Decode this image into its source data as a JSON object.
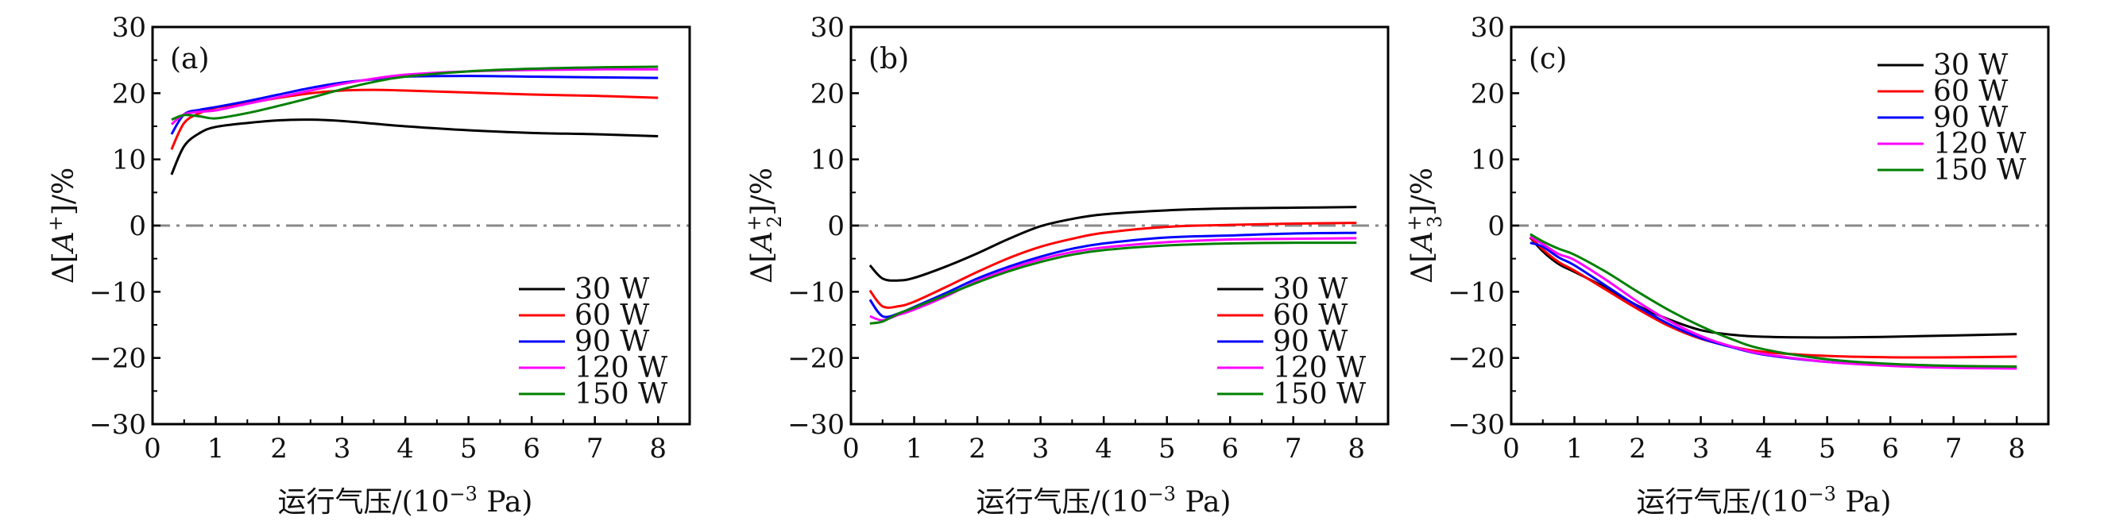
{
  "chart_data": [
    {
      "type": "line",
      "panel_label": "(a)",
      "ylabel": {
        "prefix": "Δ[",
        "ion": "A",
        "charge": "+",
        "sub": "",
        "suffix": "]/%"
      },
      "xlabel": {
        "text": "运行气压/(10",
        "exp": "−3",
        "unit": " Pa)"
      },
      "xlim": [
        0,
        8.5
      ],
      "ylim": [
        -30,
        30
      ],
      "xticks": [
        "0",
        "1",
        "2",
        "3",
        "4",
        "5",
        "6",
        "7",
        "8"
      ],
      "yticks": [
        "−30",
        "−20",
        "−10",
        "0",
        "10",
        "20",
        "30"
      ],
      "legend_position": "bottom-right",
      "reference_line": 0,
      "x": [
        0.3,
        0.5,
        0.75,
        1,
        1.5,
        2,
        2.5,
        3,
        3.5,
        4,
        5,
        6,
        7,
        8
      ],
      "series": [
        {
          "name": "30 W",
          "color": "#000000",
          "values": [
            7.7,
            12,
            14,
            14.9,
            15.5,
            15.9,
            16,
            15.8,
            15.4,
            15,
            14.4,
            14,
            13.8,
            13.5
          ]
        },
        {
          "name": "60 W",
          "color": "#ff0000",
          "values": [
            11.5,
            15.5,
            17,
            17.8,
            18.5,
            19.3,
            20,
            20.4,
            20.5,
            20.4,
            20.1,
            19.8,
            19.6,
            19.3
          ]
        },
        {
          "name": "90 W",
          "color": "#0000ff",
          "values": [
            13.8,
            16.8,
            17.5,
            17.9,
            18.8,
            19.8,
            20.8,
            21.6,
            22.1,
            22.5,
            22.6,
            22.5,
            22.4,
            22.3
          ]
        },
        {
          "name": "120 W",
          "color": "#ff00ff",
          "values": [
            15.3,
            16.8,
            17.2,
            17.4,
            18.4,
            19.4,
            20.4,
            21.4,
            22.2,
            22.8,
            23.3,
            23.5,
            23.6,
            23.6
          ]
        },
        {
          "name": "150 W",
          "color": "#008000",
          "values": [
            16,
            16.7,
            16.5,
            16.2,
            17,
            18.1,
            19.3,
            20.6,
            21.7,
            22.5,
            23.3,
            23.7,
            23.9,
            24
          ]
        }
      ]
    },
    {
      "type": "line",
      "panel_label": "(b)",
      "ylabel": {
        "prefix": "Δ[",
        "ion": "A",
        "charge": "+",
        "sub": "2",
        "suffix": "]/%"
      },
      "xlabel": {
        "text": "运行气压/(10",
        "exp": "−3",
        "unit": " Pa)"
      },
      "xlim": [
        0,
        8.5
      ],
      "ylim": [
        -30,
        30
      ],
      "xticks": [
        "0",
        "1",
        "2",
        "3",
        "4",
        "5",
        "6",
        "7",
        "8"
      ],
      "yticks": [
        "−30",
        "−20",
        "−10",
        "0",
        "10",
        "20",
        "30"
      ],
      "legend_position": "bottom-right",
      "reference_line": 0,
      "x": [
        0.3,
        0.5,
        0.75,
        1,
        1.5,
        2,
        2.5,
        3,
        3.5,
        4,
        5,
        6,
        7,
        8
      ],
      "series": [
        {
          "name": "30 W",
          "color": "#000000",
          "values": [
            -6,
            -8,
            -8.3,
            -7.9,
            -6.2,
            -4.2,
            -2,
            -0.1,
            1,
            1.7,
            2.3,
            2.6,
            2.7,
            2.8
          ]
        },
        {
          "name": "60 W",
          "color": "#ff0000",
          "values": [
            -9.8,
            -12.2,
            -12.2,
            -11.5,
            -9.3,
            -7,
            -4.9,
            -3.2,
            -2,
            -1.1,
            -0.2,
            0.1,
            0.3,
            0.4
          ]
        },
        {
          "name": "90 W",
          "color": "#0000ff",
          "values": [
            -11.2,
            -13.7,
            -13.3,
            -12.3,
            -10.2,
            -8,
            -6.2,
            -4.7,
            -3.5,
            -2.7,
            -1.8,
            -1.5,
            -1.2,
            -1.1
          ]
        },
        {
          "name": "120 W",
          "color": "#ff00ff",
          "values": [
            -13.7,
            -14.3,
            -13.5,
            -12.7,
            -10.7,
            -8.4,
            -6.6,
            -5.1,
            -4,
            -3.3,
            -2.5,
            -2.1,
            -2,
            -1.9
          ]
        },
        {
          "name": "150 W",
          "color": "#008000",
          "values": [
            -14.8,
            -14.5,
            -13.3,
            -12.4,
            -10.5,
            -8.6,
            -6.9,
            -5.5,
            -4.4,
            -3.7,
            -3,
            -2.7,
            -2.6,
            -2.6
          ]
        }
      ]
    },
    {
      "type": "line",
      "panel_label": "(c)",
      "ylabel": {
        "prefix": "Δ[",
        "ion": "A",
        "charge": "+",
        "sub": "3",
        "suffix": "]/%"
      },
      "xlabel": {
        "text": "运行气压/(10",
        "exp": "−3",
        "unit": " Pa)"
      },
      "xlim": [
        0,
        8.5
      ],
      "ylim": [
        -30,
        30
      ],
      "xticks": [
        "0",
        "1",
        "2",
        "3",
        "4",
        "5",
        "6",
        "7",
        "8"
      ],
      "yticks": [
        "−30",
        "−20",
        "−10",
        "0",
        "10",
        "20",
        "30"
      ],
      "legend_position": "top-right",
      "reference_line": 0,
      "x": [
        0.3,
        0.5,
        0.75,
        1,
        1.5,
        2,
        2.5,
        3,
        3.5,
        4,
        5,
        6,
        7,
        8
      ],
      "series": [
        {
          "name": "30 W",
          "color": "#000000",
          "values": [
            -1.8,
            -3.9,
            -5.8,
            -7,
            -9.4,
            -12.1,
            -14.2,
            -15.8,
            -16.5,
            -16.8,
            -16.9,
            -16.8,
            -16.6,
            -16.4
          ]
        },
        {
          "name": "60 W",
          "color": "#ff0000",
          "values": [
            -1.7,
            -3.6,
            -5.5,
            -6.8,
            -9.7,
            -12.6,
            -15.2,
            -17.1,
            -18.3,
            -19.1,
            -19.7,
            -19.9,
            -19.9,
            -19.8
          ]
        },
        {
          "name": "90 W",
          "color": "#0000ff",
          "values": [
            -2.6,
            -3.2,
            -4.8,
            -6,
            -9.1,
            -12.2,
            -14.9,
            -17,
            -18.4,
            -19.5,
            -20.6,
            -21.1,
            -21.3,
            -21.4
          ]
        },
        {
          "name": "120 W",
          "color": "#ff00ff",
          "values": [
            -1.7,
            -2.8,
            -4.3,
            -5.2,
            -8.2,
            -11.5,
            -14.4,
            -16.7,
            -18.3,
            -19.4,
            -20.6,
            -21.2,
            -21.5,
            -21.6
          ]
        },
        {
          "name": "150 W",
          "color": "#008000",
          "values": [
            -1.3,
            -2.4,
            -3.5,
            -4.4,
            -7,
            -10,
            -12.8,
            -15.2,
            -17.2,
            -18.7,
            -20.2,
            -20.9,
            -21.2,
            -21.3
          ]
        }
      ]
    }
  ]
}
